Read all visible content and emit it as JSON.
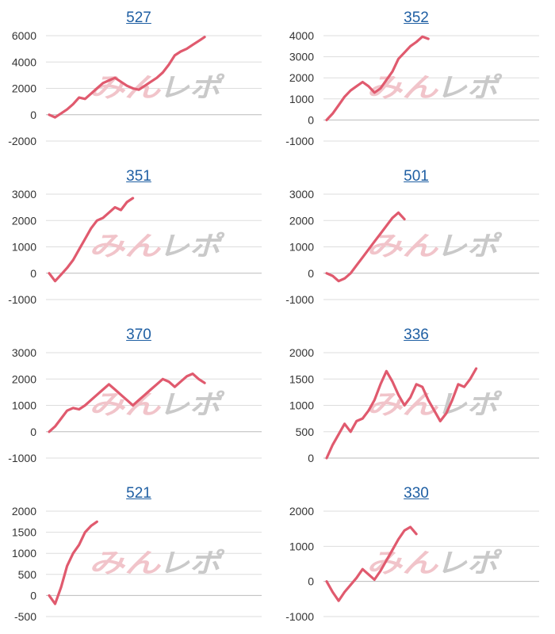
{
  "chart_data": [
    {
      "type": "line",
      "title": "527",
      "ylim": [
        -2000,
        6000
      ],
      "yticks": [
        -2000,
        0,
        2000,
        4000,
        6000
      ],
      "x": [
        0,
        1,
        2,
        3,
        4,
        5,
        6,
        7,
        8,
        9,
        10,
        11,
        12,
        13,
        14,
        15,
        16,
        17,
        18,
        19,
        20,
        21,
        22,
        23,
        24,
        25,
        26,
        27,
        28,
        29,
        30,
        31,
        32,
        33,
        34,
        35
      ],
      "values": [
        0,
        -200,
        100,
        400,
        800,
        1300,
        1200,
        1600,
        2000,
        2400,
        2600,
        2800,
        2500,
        2200,
        2000,
        1900,
        2200,
        2500,
        2800,
        3200,
        3800,
        4500,
        4800,
        5000,
        5300,
        5600,
        5900,
        null,
        null,
        null,
        null,
        null,
        null,
        null,
        null,
        null
      ]
    },
    {
      "type": "line",
      "title": "352",
      "ylim": [
        -1000,
        4000
      ],
      "yticks": [
        -1000,
        0,
        1000,
        2000,
        3000,
        4000
      ],
      "x": [
        0,
        1,
        2,
        3,
        4,
        5,
        6,
        7,
        8,
        9,
        10,
        11,
        12,
        13,
        14,
        15,
        16,
        17,
        18,
        19,
        20,
        21,
        22,
        23,
        24,
        25,
        26,
        27,
        28,
        29,
        30,
        31,
        32,
        33,
        34,
        35
      ],
      "values": [
        0,
        300,
        700,
        1100,
        1400,
        1600,
        1800,
        1600,
        1300,
        1500,
        1900,
        2300,
        2900,
        3200,
        3500,
        3700,
        3950,
        3850,
        null,
        null,
        null,
        null,
        null,
        null,
        null,
        null,
        null,
        null,
        null,
        null,
        null,
        null,
        null,
        null,
        null,
        null
      ]
    },
    {
      "type": "line",
      "title": "351",
      "ylim": [
        -1000,
        3000
      ],
      "yticks": [
        -1000,
        0,
        1000,
        2000,
        3000
      ],
      "x": [
        0,
        1,
        2,
        3,
        4,
        5,
        6,
        7,
        8,
        9,
        10,
        11,
        12,
        13,
        14,
        15,
        16,
        17,
        18,
        19,
        20,
        21,
        22,
        23,
        24,
        25,
        26,
        27,
        28,
        29,
        30,
        31,
        32,
        33,
        34,
        35
      ],
      "values": [
        0,
        -300,
        -50,
        200,
        500,
        900,
        1300,
        1700,
        2000,
        2100,
        2300,
        2500,
        2400,
        2700,
        2850,
        null,
        null,
        null,
        null,
        null,
        null,
        null,
        null,
        null,
        null,
        null,
        null,
        null,
        null,
        null,
        null,
        null,
        null,
        null,
        null,
        null
      ]
    },
    {
      "type": "line",
      "title": "501",
      "ylim": [
        -1000,
        3000
      ],
      "yticks": [
        -1000,
        0,
        1000,
        2000,
        3000
      ],
      "x": [
        0,
        1,
        2,
        3,
        4,
        5,
        6,
        7,
        8,
        9,
        10,
        11,
        12,
        13,
        14,
        15,
        16,
        17,
        18,
        19,
        20,
        21,
        22,
        23,
        24,
        25,
        26,
        27,
        28,
        29,
        30,
        31,
        32,
        33,
        34,
        35
      ],
      "values": [
        0,
        -100,
        -300,
        -200,
        0,
        300,
        600,
        900,
        1200,
        1500,
        1800,
        2100,
        2300,
        2050,
        null,
        null,
        null,
        null,
        null,
        null,
        null,
        null,
        null,
        null,
        null,
        null,
        null,
        null,
        null,
        null,
        null,
        null,
        null,
        null,
        null,
        null
      ]
    },
    {
      "type": "line",
      "title": "370",
      "ylim": [
        -1000,
        3000
      ],
      "yticks": [
        -1000,
        0,
        1000,
        2000,
        3000
      ],
      "x": [
        0,
        1,
        2,
        3,
        4,
        5,
        6,
        7,
        8,
        9,
        10,
        11,
        12,
        13,
        14,
        15,
        16,
        17,
        18,
        19,
        20,
        21,
        22,
        23,
        24,
        25,
        26,
        27,
        28,
        29,
        30,
        31,
        32,
        33,
        34,
        35
      ],
      "values": [
        0,
        200,
        500,
        800,
        900,
        850,
        1000,
        1200,
        1400,
        1600,
        1800,
        1600,
        1400,
        1200,
        1000,
        1200,
        1400,
        1600,
        1800,
        2000,
        1900,
        1700,
        1900,
        2100,
        2200,
        2000,
        1850,
        null,
        null,
        null,
        null,
        null,
        null,
        null,
        null,
        null
      ]
    },
    {
      "type": "line",
      "title": "336",
      "ylim": [
        0,
        2000
      ],
      "yticks": [
        0,
        500,
        1000,
        1500,
        2000
      ],
      "x": [
        0,
        1,
        2,
        3,
        4,
        5,
        6,
        7,
        8,
        9,
        10,
        11,
        12,
        13,
        14,
        15,
        16,
        17,
        18,
        19,
        20,
        21,
        22,
        23,
        24,
        25,
        26,
        27,
        28,
        29,
        30,
        31,
        32,
        33,
        34,
        35
      ],
      "values": [
        0,
        250,
        450,
        650,
        500,
        700,
        750,
        900,
        1100,
        1400,
        1650,
        1450,
        1200,
        1000,
        1150,
        1400,
        1350,
        1100,
        900,
        700,
        850,
        1100,
        1400,
        1350,
        1500,
        1700,
        null,
        null,
        null,
        null,
        null,
        null,
        null,
        null,
        null,
        null
      ]
    },
    {
      "type": "line",
      "title": "521",
      "ylim": [
        -500,
        2000
      ],
      "yticks": [
        -500,
        0,
        500,
        1000,
        1500,
        2000
      ],
      "x": [
        0,
        1,
        2,
        3,
        4,
        5,
        6,
        7,
        8,
        9,
        10,
        11,
        12,
        13,
        14,
        15,
        16,
        17,
        18,
        19,
        20,
        21,
        22,
        23,
        24,
        25,
        26,
        27,
        28,
        29,
        30,
        31,
        32,
        33,
        34,
        35
      ],
      "values": [
        0,
        -200,
        200,
        700,
        1000,
        1200,
        1500,
        1650,
        1750,
        null,
        null,
        null,
        null,
        null,
        null,
        null,
        null,
        null,
        null,
        null,
        null,
        null,
        null,
        null,
        null,
        null,
        null,
        null,
        null,
        null,
        null,
        null,
        null,
        null,
        null,
        null
      ]
    },
    {
      "type": "line",
      "title": "330",
      "ylim": [
        -1000,
        2000
      ],
      "yticks": [
        -1000,
        0,
        1000,
        2000
      ],
      "x": [
        0,
        1,
        2,
        3,
        4,
        5,
        6,
        7,
        8,
        9,
        10,
        11,
        12,
        13,
        14,
        15,
        16,
        17,
        18,
        19,
        20,
        21,
        22,
        23,
        24,
        25,
        26,
        27,
        28,
        29,
        30,
        31,
        32,
        33,
        34,
        35
      ],
      "values": [
        0,
        -300,
        -550,
        -300,
        -100,
        100,
        350,
        200,
        50,
        300,
        600,
        900,
        1200,
        1450,
        1550,
        1350,
        null,
        null,
        null,
        null,
        null,
        null,
        null,
        null,
        null,
        null,
        null,
        null,
        null,
        null,
        null,
        null,
        null,
        null,
        null,
        null
      ]
    }
  ],
  "watermark": {
    "text": "みんレポ",
    "color_a": "#f1c4ca",
    "color_b": "#c9c9c9"
  },
  "style": {
    "line_color": "#e05a6e",
    "grid_color": "#dddddd",
    "axis_color": "#bbbbbb"
  }
}
